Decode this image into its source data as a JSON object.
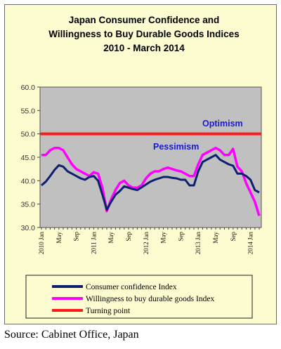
{
  "chart_data": {
    "type": "line",
    "title": [
      "Japan Consumer Confidence and",
      "Willingness to Buy Durable Goods Indices",
      "2010 - March 2014"
    ],
    "xlabel": "",
    "ylabel": "",
    "ylim": [
      30.0,
      60.0
    ],
    "yticks": [
      "60.0",
      "55.0",
      "50.0",
      "45.0",
      "40.0",
      "35.0",
      "30.0"
    ],
    "x_tick_labels": [
      {
        "month": "2010-01",
        "label": "2010 Jan"
      },
      {
        "month": "2010-05",
        "label": "May"
      },
      {
        "month": "2010-09",
        "label": "Sep"
      },
      {
        "month": "2011-01",
        "label": "2011 Jan"
      },
      {
        "month": "2011-05",
        "label": "May"
      },
      {
        "month": "2011-09",
        "label": "Sep"
      },
      {
        "month": "2012-01",
        "label": "2012 Jan"
      },
      {
        "month": "2012-05",
        "label": "May"
      },
      {
        "month": "2012-09",
        "label": "Sep"
      },
      {
        "month": "2013-01",
        "label": "2013 Jan"
      },
      {
        "month": "2013-05",
        "label": "May"
      },
      {
        "month": "2013-09",
        "label": "Sep"
      },
      {
        "month": "2014-01",
        "label": "2014 Jan"
      }
    ],
    "grid": false,
    "legend": "bottom",
    "annotations": [
      {
        "text": "Optimism",
        "color": "#1a1ad6"
      },
      {
        "text": "Pessimism",
        "color": "#1a1ad6"
      }
    ],
    "x": [
      "2010-01",
      "2010-02",
      "2010-03",
      "2010-04",
      "2010-05",
      "2010-06",
      "2010-07",
      "2010-08",
      "2010-09",
      "2010-10",
      "2010-11",
      "2010-12",
      "2011-01",
      "2011-02",
      "2011-03",
      "2011-04",
      "2011-05",
      "2011-06",
      "2011-07",
      "2011-08",
      "2011-09",
      "2011-10",
      "2011-11",
      "2011-12",
      "2012-01",
      "2012-02",
      "2012-03",
      "2012-04",
      "2012-05",
      "2012-06",
      "2012-07",
      "2012-08",
      "2012-09",
      "2012-10",
      "2012-11",
      "2012-12",
      "2013-01",
      "2013-02",
      "2013-03",
      "2013-04",
      "2013-05",
      "2013-06",
      "2013-07",
      "2013-08",
      "2013-09",
      "2013-10",
      "2013-11",
      "2013-12",
      "2014-01",
      "2014-02",
      "2014-03"
    ],
    "series": [
      {
        "name": "Consumer confidence Index",
        "color": "#0d1f6e",
        "values": [
          39.0,
          39.8,
          41.0,
          42.3,
          43.3,
          43.0,
          42.0,
          41.5,
          41.0,
          40.5,
          40.2,
          40.8,
          41.0,
          40.0,
          37.0,
          33.8,
          35.5,
          37.0,
          37.8,
          38.8,
          38.5,
          38.2,
          38.0,
          38.6,
          39.2,
          39.8,
          40.2,
          40.5,
          40.8,
          40.8,
          40.6,
          40.5,
          40.2,
          40.2,
          39.0,
          39.0,
          42.0,
          44.0,
          44.5,
          45.0,
          45.5,
          44.5,
          44.0,
          43.5,
          43.2,
          41.5,
          41.5,
          41.0,
          40.2,
          38.0,
          37.5
        ]
      },
      {
        "name": "Willingness to buy durable goods Index",
        "color": "#ff00ff",
        "values": [
          45.5,
          45.5,
          46.5,
          47.0,
          47.0,
          46.5,
          45.0,
          43.5,
          42.5,
          42.0,
          41.5,
          41.0,
          41.8,
          41.5,
          38.5,
          33.5,
          36.0,
          38.0,
          39.5,
          40.0,
          39.0,
          38.5,
          38.5,
          39.0,
          40.5,
          41.5,
          42.0,
          42.0,
          42.5,
          42.8,
          42.5,
          42.2,
          42.0,
          41.5,
          41.0,
          41.0,
          43.5,
          45.5,
          46.0,
          46.5,
          47.0,
          46.5,
          45.5,
          45.5,
          46.8,
          43.0,
          42.0,
          39.5,
          37.5,
          35.5,
          32.5
        ]
      },
      {
        "name": "Turning point",
        "color": "#ff1a1a",
        "constant": 50.0
      }
    ]
  },
  "source": "Source: Cabinet Office, Japan"
}
